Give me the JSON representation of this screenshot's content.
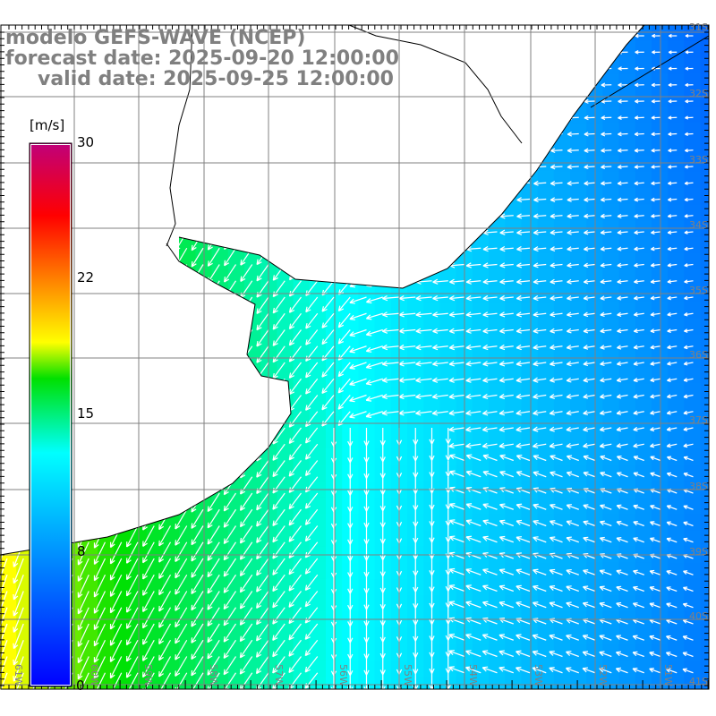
{
  "title": {
    "model": "modelo GEFS-WAVE (NCEP)",
    "forecast": "forecast date: 2025-09-20 12:00:00",
    "valid": "valid date: 2025-09-25 12:00:00"
  },
  "colorbar": {
    "unit": "[m/s]",
    "ticks": [
      "30",
      "22",
      "15",
      "8",
      "0"
    ],
    "range": [
      0,
      30
    ],
    "stops": [
      {
        "value": 0,
        "color": "#0000ff"
      },
      {
        "value": 12.9,
        "color": "#00ffff"
      },
      {
        "value": 17,
        "color": "#00e000"
      },
      {
        "value": 19,
        "color": "#ffff00"
      },
      {
        "value": 22.5,
        "color": "#ff8000"
      },
      {
        "value": 26,
        "color": "#ff0000"
      },
      {
        "value": 30,
        "color": "#c0007a"
      }
    ]
  },
  "axes": {
    "longitudes": [
      "61W",
      "60W",
      "59W",
      "58W",
      "57W",
      "56W",
      "55W",
      "54W",
      "53W",
      "52W",
      "51W"
    ],
    "latitudes": [
      "31S",
      "32S",
      "33S",
      "34S",
      "35S",
      "36S",
      "37S",
      "38S",
      "39S",
      "40S",
      "41S"
    ]
  },
  "colors": {
    "grid": "#808080",
    "coast": "#000000",
    "land": "#ffffff",
    "arrow": "#ffffff"
  }
}
